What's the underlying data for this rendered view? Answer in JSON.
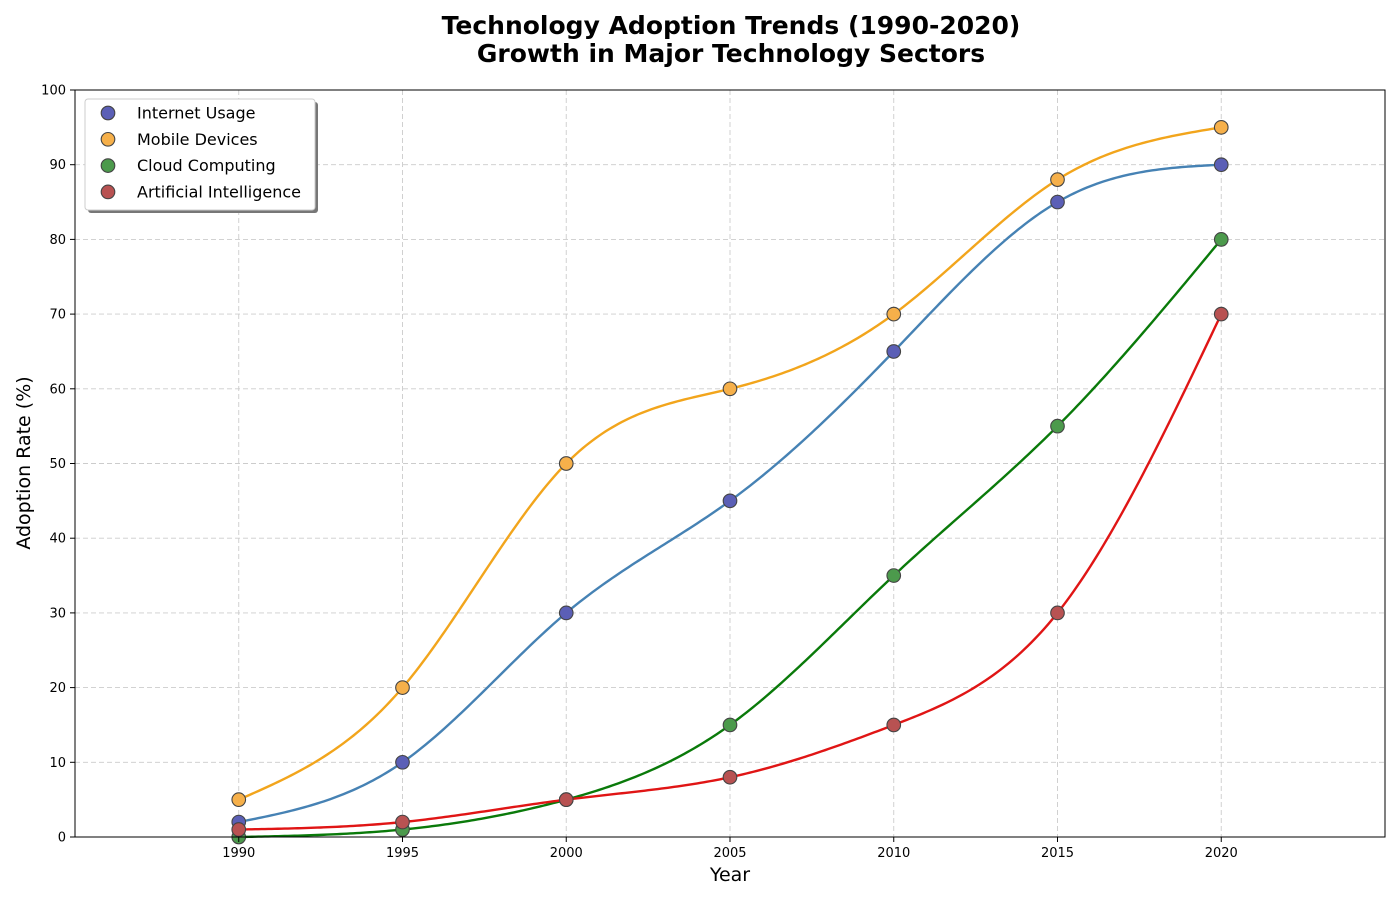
{
  "chart_data": {
    "type": "line",
    "title": "Technology Adoption Trends (1990-2020)",
    "subtitle": "Growth in Major Technology Sectors",
    "xlabel": "Year",
    "ylabel": "Adoption Rate (%)",
    "xlim": [
      1985,
      2025
    ],
    "ylim": [
      0,
      100
    ],
    "xticks": [
      1990,
      1995,
      2000,
      2005,
      2010,
      2015,
      2020
    ],
    "yticks": [
      0,
      10,
      20,
      30,
      40,
      50,
      60,
      70,
      80,
      90,
      100
    ],
    "grid": true,
    "legend_position": "top-left",
    "x": [
      1990,
      1995,
      2000,
      2005,
      2010,
      2015,
      2020
    ],
    "series": [
      {
        "name": "Internet Usage",
        "values": [
          2,
          10,
          30,
          45,
          65,
          85,
          90
        ],
        "line_color": "#4682b4",
        "marker_color": "#5b5fb6"
      },
      {
        "name": "Mobile Devices",
        "values": [
          5,
          20,
          50,
          60,
          70,
          88,
          95
        ],
        "line_color": "#f2a51c",
        "marker_color": "#f6b04a"
      },
      {
        "name": "Cloud Computing",
        "values": [
          0,
          1,
          5,
          15,
          35,
          55,
          80
        ],
        "line_color": "#0a7a0a",
        "marker_color": "#4c9a4c"
      },
      {
        "name": "Artificial Intelligence",
        "values": [
          1,
          2,
          5,
          8,
          15,
          30,
          70
        ],
        "line_color": "#e01515",
        "marker_color": "#b85252"
      }
    ]
  }
}
